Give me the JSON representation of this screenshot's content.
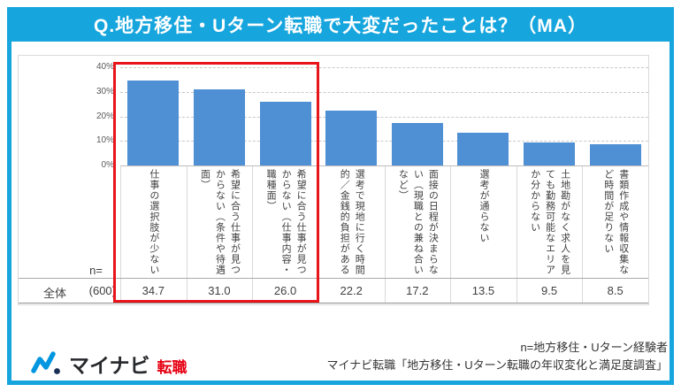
{
  "title": "Q.地方移住・Uターン転職で大変だったことは？（MA）",
  "colors": {
    "accent_cyan": "#16a5dd",
    "bar_blue": "#4f8fd4",
    "highlight_red": "#e8141a",
    "logo_red": "#e60012",
    "logo_blue": "#0096e0"
  },
  "chart_data": {
    "type": "bar",
    "title": "Q.地方移住・Uターン転職で大変だったことは？（MA）",
    "categories": [
      "仕事の選択肢が少ない",
      "希望に合う仕事が見つからない（条件や待遇面）",
      "希望に合う仕事が見つからない（仕事内容・職種面）",
      "選考で現地に行く時間的／金銭的負担がある",
      "面接の日程が決まらない（現職との兼ね合いなど）",
      "選考が通らない",
      "土地勘がなく求人を見ても勤務可能なエリアか分からない",
      "書類作成や情報収集など時間が足りない"
    ],
    "values": [
      34.7,
      31.0,
      26.0,
      22.2,
      17.2,
      13.5,
      9.5,
      8.5
    ],
    "ylabel": "",
    "xlabel": "",
    "ylim": [
      0,
      40
    ],
    "yticks": [
      "40%",
      "30%",
      "20%",
      "10%",
      "0%"
    ],
    "grid": "dashed horizontal",
    "legend": "none",
    "highlighted_first_n_bars": 3
  },
  "table": {
    "n_header": "n=",
    "row_label": "全体",
    "n_value": "(600)",
    "values": [
      "34.7",
      "31.0",
      "26.0",
      "22.2",
      "17.2",
      "13.5",
      "9.5",
      "8.5"
    ]
  },
  "footer": {
    "logo_text": "マイナビ",
    "logo_suffix": "転職",
    "source_line1": "n=地方移住・Uターン経験者",
    "source_line2": "マイナビ転職「地方移住・Uターン転職の年収変化と満足度調査」"
  }
}
